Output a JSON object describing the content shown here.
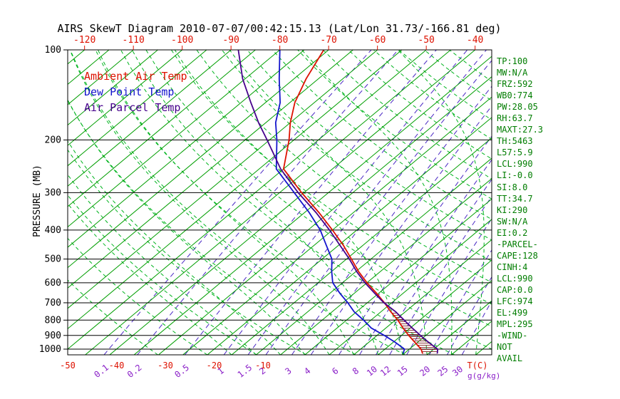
{
  "title": "AIRS SkewT Diagram 2010-07-07/00:42:15.13 (Lat/Lon 31.73/-166.81 deg)",
  "legend": {
    "items": [
      {
        "id": "ambient",
        "label": "Ambient Air Temp",
        "color": "#dd1100"
      },
      {
        "id": "dew_point",
        "label": "Dew Point Temp",
        "color": "#1414cc"
      },
      {
        "id": "parcel",
        "label": "Air Parcel Temp",
        "color": "#46008c"
      }
    ]
  },
  "axes": {
    "pressure_label": "PRESSURE (MB)",
    "pressure_ticks": [
      100,
      200,
      300,
      400,
      500,
      600,
      700,
      800,
      900,
      1000
    ],
    "top_temp_ticks": [
      -120,
      -110,
      -100,
      -90,
      -80,
      -70,
      -60,
      -50,
      -40
    ],
    "bottom_temp_ticks": [
      -50,
      -40,
      -30,
      -20,
      -10
    ],
    "temp_unit_label": "T(C)",
    "mixing_ratio_ticks": [
      0.1,
      0.2,
      0.5,
      1,
      1.5,
      2,
      3,
      4,
      6,
      8,
      10,
      12,
      15,
      20,
      25,
      30
    ],
    "mixing_ratio_unit_label": "g(g/kg)"
  },
  "side_panel": {
    "lines": [
      "TP:100",
      "MW:N/A",
      "FRZ:592",
      "WB0:774",
      "PW:28.05",
      "RH:63.7",
      "MAXT:27.3",
      "TH:5463",
      "L57:5.9",
      "LCL:990",
      "LI:-0.0",
      "SI:8.0",
      "TT:34.7",
      "KI:290",
      "SW:N/A",
      "EI:0.2",
      "-PARCEL-",
      "CAPE:128",
      "CINH:4",
      "LCL:990",
      "CAP:0.0",
      "LFC:974",
      "EL:499",
      "MPL:295",
      "-WIND-",
      "NOT",
      "AVAIL"
    ]
  },
  "colors": {
    "isotherm": "#009e00",
    "adiabat": "#00b41e",
    "mixing_line": "#4a28c4",
    "mixing_label": "#8a1fc8",
    "pressure_line": "#000000",
    "top_axis_label": "#dd1100",
    "bottom_axis_label": "#dd1100",
    "panel_text": "#007d00",
    "hatch": "#8b3a3a",
    "title": "#000000"
  },
  "chart_data": {
    "type": "line",
    "variant": "skew-t-log-p",
    "title": "AIRS SkewT Diagram 2010-07-07/00:42:15.13 (Lat/Lon 31.73/-166.81 deg)",
    "xlabel": "T(C)",
    "ylabel": "PRESSURE (MB)",
    "y_scale": "log",
    "y_range_mb": [
      100,
      1045
    ],
    "y_ticks_mb": [
      100,
      200,
      300,
      400,
      500,
      600,
      700,
      800,
      900,
      1000
    ],
    "x_top_ticks_c": [
      -120,
      -110,
      -100,
      -90,
      -80,
      -70,
      -60,
      -50,
      -40
    ],
    "x_bottom_ticks_c": [
      -50,
      -40,
      -30,
      -20,
      -10
    ],
    "grid": {
      "isotherms_c": {
        "min": -130,
        "max": 45,
        "step": 5
      },
      "dry_adiabats_theta_k": [
        240,
        250,
        260,
        270,
        280,
        290,
        300,
        310,
        320,
        330,
        340,
        350,
        360,
        370,
        380,
        390,
        400,
        410,
        420,
        430,
        440
      ],
      "moist_adiabats_start_c": [
        -15,
        -10,
        -5,
        0,
        5,
        10,
        15,
        20,
        25,
        30,
        35,
        40,
        45
      ],
      "mixing_ratio_g_kg": [
        0.1,
        0.2,
        0.5,
        1,
        1.5,
        2,
        3,
        4,
        6,
        8,
        10,
        12,
        15,
        20,
        25,
        30
      ]
    },
    "series": [
      {
        "id": "ambient",
        "name": "Ambient Air Temp",
        "color": "#dd1100",
        "points_p_t": [
          [
            1035,
            23.8
          ],
          [
            1000,
            22.4
          ],
          [
            950,
            19.5
          ],
          [
            900,
            16.5
          ],
          [
            850,
            13.5
          ],
          [
            800,
            10.5
          ],
          [
            750,
            7.0
          ],
          [
            700,
            3.5
          ],
          [
            650,
            -0.5
          ],
          [
            600,
            -5.0
          ],
          [
            550,
            -9.5
          ],
          [
            500,
            -14.0
          ],
          [
            450,
            -19.0
          ],
          [
            400,
            -25.0
          ],
          [
            350,
            -32.0
          ],
          [
            300,
            -40.5
          ],
          [
            250,
            -50.0
          ],
          [
            200,
            -56.0
          ],
          [
            175,
            -60.0
          ],
          [
            150,
            -64.0
          ],
          [
            125,
            -67.5
          ],
          [
            100,
            -71.0
          ]
        ]
      },
      {
        "id": "dew_point",
        "name": "Dew Point Temp",
        "color": "#1414cc",
        "points_p_t": [
          [
            1035,
            19.8
          ],
          [
            1000,
            19.0
          ],
          [
            950,
            15.5
          ],
          [
            900,
            11.5
          ],
          [
            850,
            7.0
          ],
          [
            800,
            3.5
          ],
          [
            750,
            -0.5
          ],
          [
            700,
            -4.0
          ],
          [
            650,
            -8.0
          ],
          [
            600,
            -12.0
          ],
          [
            550,
            -15.0
          ],
          [
            500,
            -18.0
          ],
          [
            450,
            -22.5
          ],
          [
            400,
            -27.5
          ],
          [
            350,
            -34.0
          ],
          [
            300,
            -42.0
          ],
          [
            250,
            -51.5
          ],
          [
            200,
            -58.5
          ],
          [
            175,
            -63.0
          ],
          [
            150,
            -67.0
          ],
          [
            125,
            -73.0
          ],
          [
            100,
            -80.0
          ]
        ]
      },
      {
        "id": "parcel",
        "name": "Air Parcel Temp",
        "color": "#46008c",
        "points_p_t": [
          [
            1035,
            26.8
          ],
          [
            1000,
            25.8
          ],
          [
            950,
            22.3
          ],
          [
            900,
            18.9
          ],
          [
            850,
            15.4
          ],
          [
            800,
            11.8
          ],
          [
            750,
            8.0
          ],
          [
            700,
            3.4
          ],
          [
            650,
            -0.9
          ],
          [
            600,
            -5.4
          ],
          [
            550,
            -9.9
          ],
          [
            500,
            -14.4
          ],
          [
            450,
            -19.7
          ],
          [
            400,
            -25.6
          ],
          [
            350,
            -32.6
          ],
          [
            300,
            -41.2
          ],
          [
            250,
            -50.6
          ],
          [
            200,
            -60.5
          ],
          [
            175,
            -66.5
          ],
          [
            150,
            -73.0
          ],
          [
            125,
            -80.5
          ],
          [
            100,
            -88.5
          ]
        ]
      }
    ],
    "hatch_region": {
      "between": [
        "parcel",
        "ambient"
      ],
      "where": "parcel warmer than ambient",
      "from_mb": 1035,
      "to_mb": 750
    },
    "legend_position": "top-left-inside",
    "annotations_right_panel": [
      "TP:100",
      "MW:N/A",
      "FRZ:592",
      "WB0:774",
      "PW:28.05",
      "RH:63.7",
      "MAXT:27.3",
      "TH:5463",
      "L57:5.9",
      "LCL:990",
      "LI:-0.0",
      "SI:8.0",
      "TT:34.7",
      "KI:290",
      "SW:N/A",
      "EI:0.2",
      "-PARCEL-",
      "CAPE:128",
      "CINH:4",
      "LCL:990",
      "CAP:0.0",
      "LFC:974",
      "EL:499",
      "MPL:295",
      "-WIND-",
      "NOT",
      "AVAIL"
    ]
  }
}
